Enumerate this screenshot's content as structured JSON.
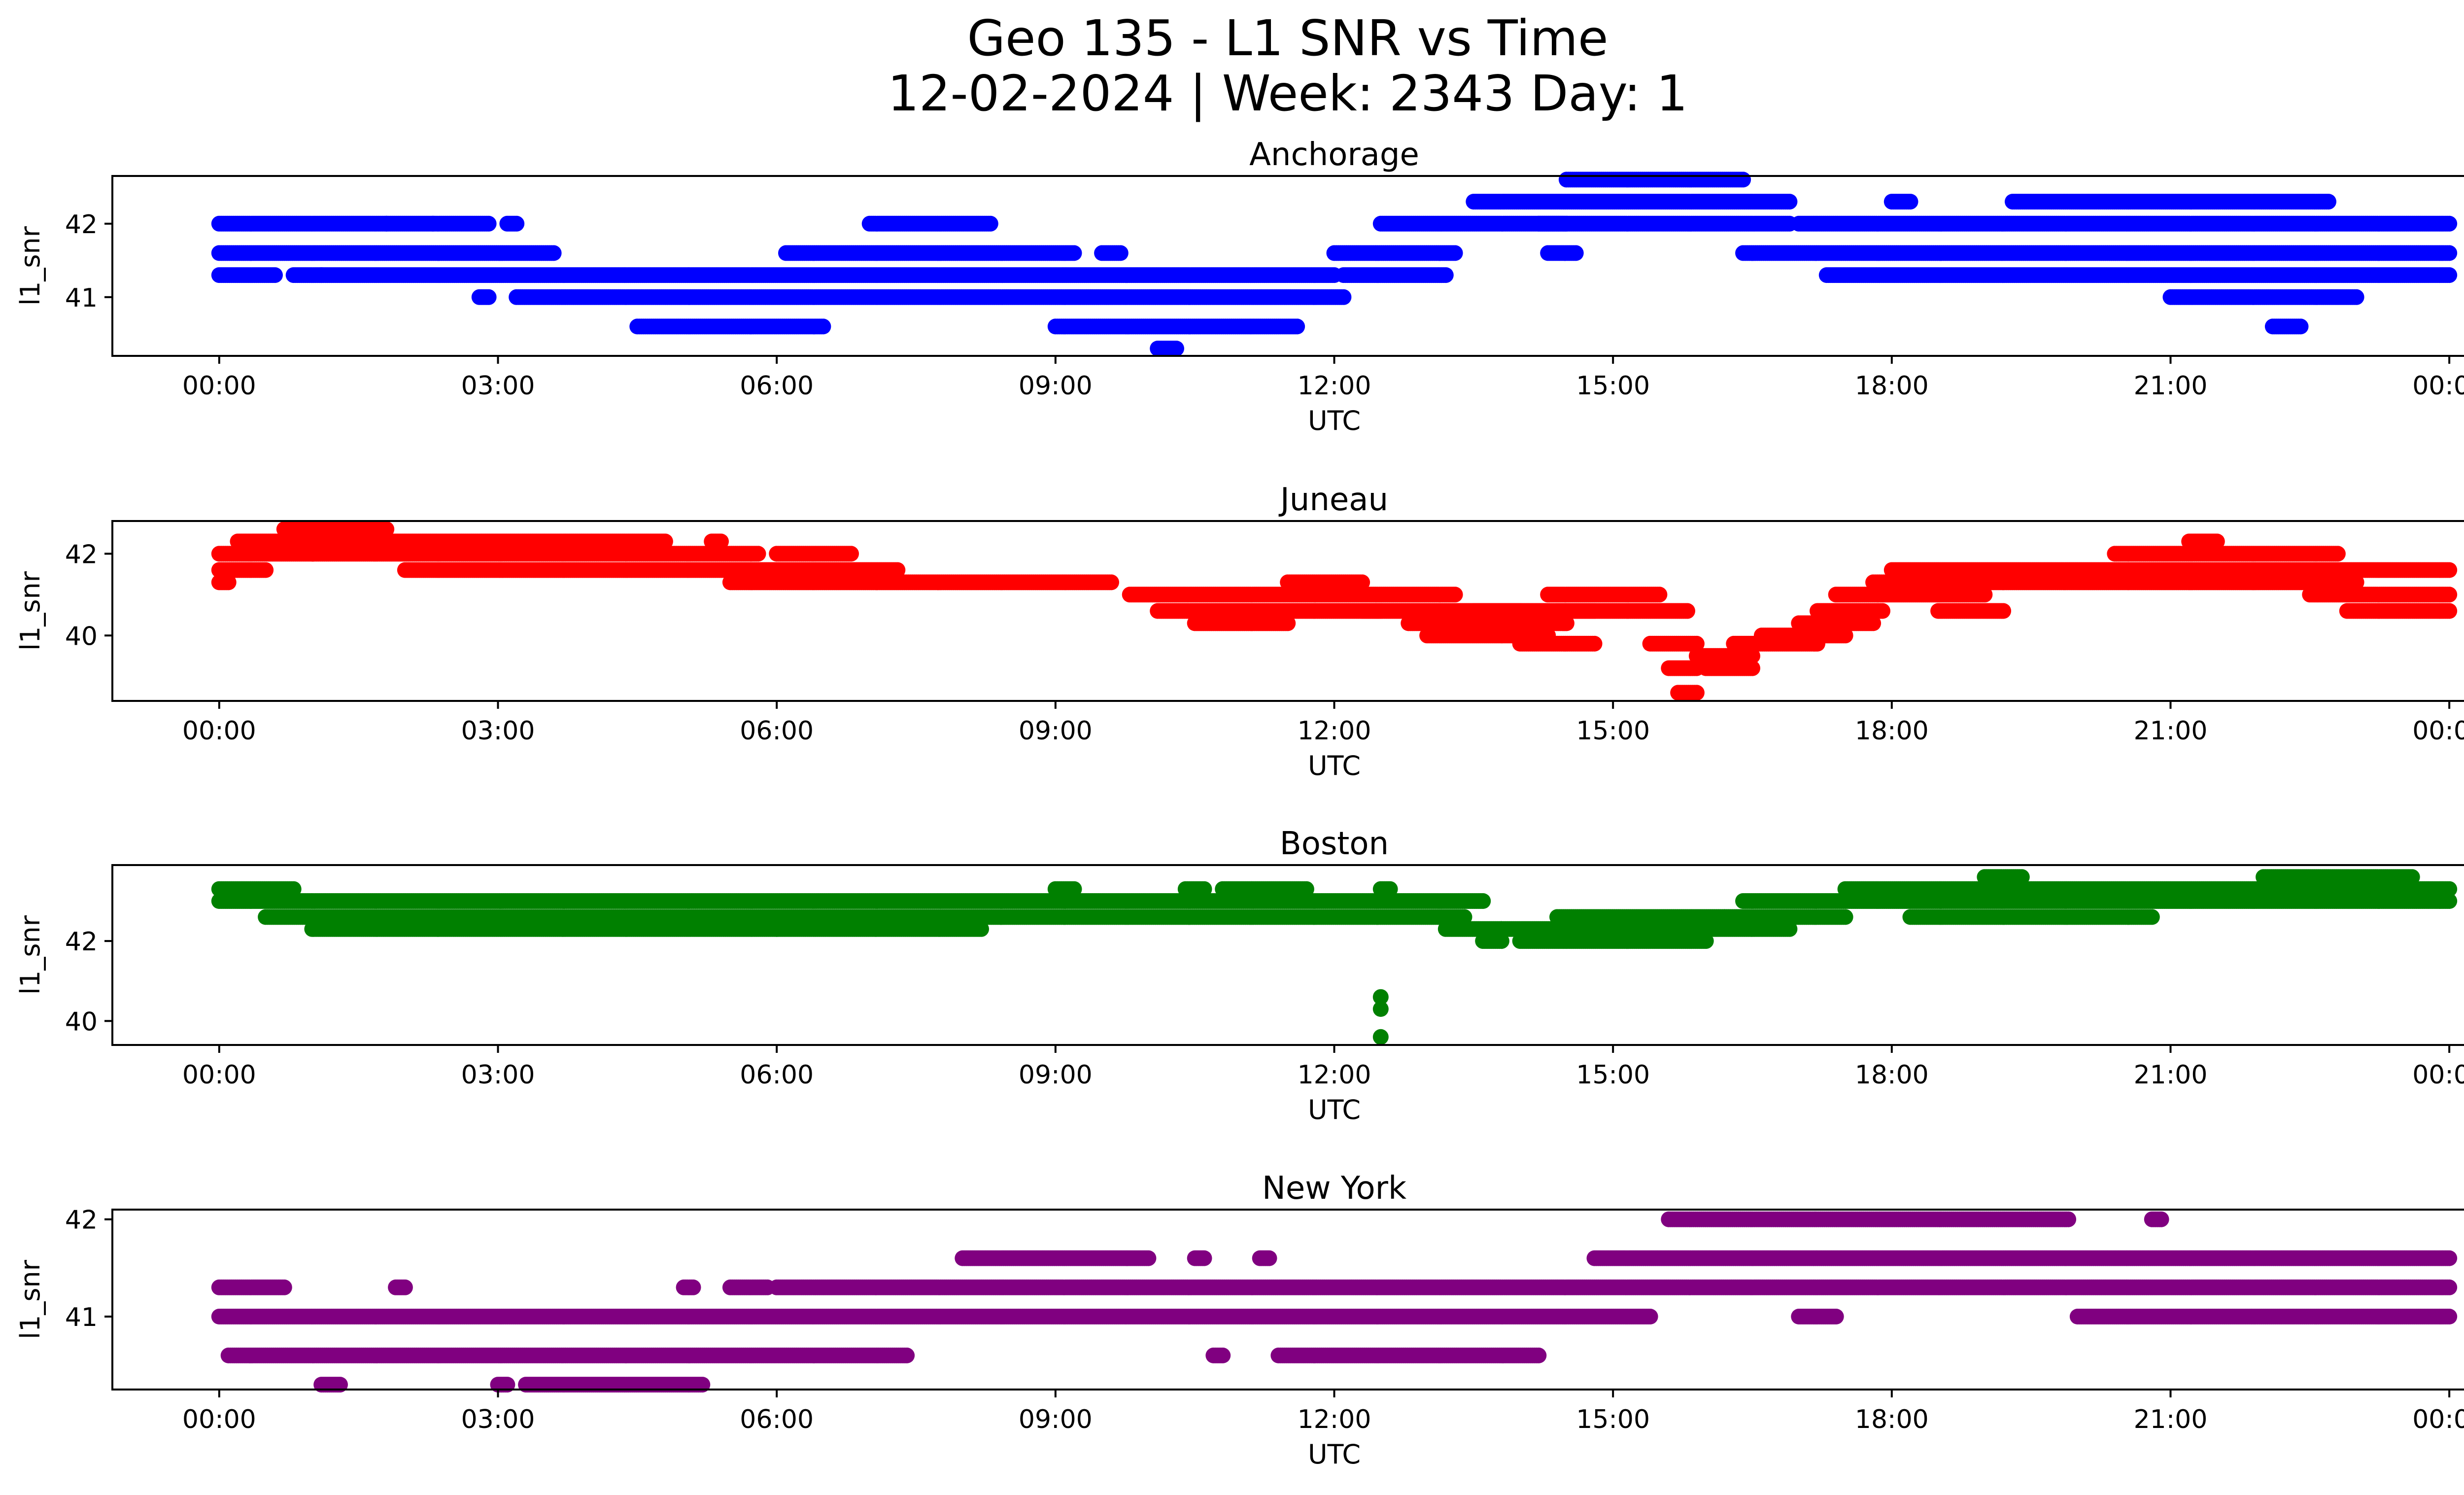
{
  "chart_data": {
    "type": "scatter",
    "title_line1": "Geo 135 - L1 SNR vs Time",
    "title_line2": "12-02-2024 | Week: 2343 Day: 1",
    "xlabel": "UTC",
    "ylabel": "l1_snr",
    "xticks": [
      "00:00",
      "03:00",
      "06:00",
      "09:00",
      "12:00",
      "15:00",
      "18:00",
      "21:00",
      "00:00"
    ],
    "xlim_hours": [
      -1.15,
      25.15
    ],
    "panels": [
      {
        "name": "Anchorage",
        "color": "#0000ff",
        "ylim": [
          40.2,
          42.65
        ],
        "yticks": [
          41,
          42
        ],
        "y_levels": [
          40.3,
          40.6,
          41.0,
          41.3,
          41.6,
          42.0,
          42.3,
          42.6
        ],
        "segments": [
          [
            0.0,
            0.6,
            41.3
          ],
          [
            0.0,
            3.6,
            41.6
          ],
          [
            0.0,
            1.8,
            42.0
          ],
          [
            1.8,
            2.3,
            42.0
          ],
          [
            2.3,
            2.9,
            42.0
          ],
          [
            3.1,
            3.2,
            42.0
          ],
          [
            0.8,
            1.1,
            41.3
          ],
          [
            1.1,
            12.0,
            41.3
          ],
          [
            2.8,
            2.9,
            41.0
          ],
          [
            3.2,
            12.1,
            41.0
          ],
          [
            4.5,
            6.5,
            40.6
          ],
          [
            6.1,
            9.2,
            41.6
          ],
          [
            7.0,
            8.3,
            42.0
          ],
          [
            9.0,
            11.6,
            40.6
          ],
          [
            10.1,
            10.3,
            40.3
          ],
          [
            9.5,
            9.7,
            41.6
          ],
          [
            12.0,
            13.3,
            41.6
          ],
          [
            12.1,
            13.2,
            41.3
          ],
          [
            12.5,
            14.5,
            42.0
          ],
          [
            13.5,
            16.9,
            42.3
          ],
          [
            14.5,
            16.4,
            42.6
          ],
          [
            14.2,
            16.9,
            42.0
          ],
          [
            14.3,
            14.6,
            41.6
          ],
          [
            16.4,
            24.0,
            41.6
          ],
          [
            17.0,
            24.0,
            42.0
          ],
          [
            17.3,
            24.0,
            41.3
          ],
          [
            21.0,
            23.0,
            41.0
          ],
          [
            18.0,
            18.2,
            42.3
          ],
          [
            19.3,
            22.7,
            42.3
          ],
          [
            22.1,
            22.4,
            40.6
          ]
        ]
      },
      {
        "name": "Juneau",
        "color": "#ff0000",
        "ylim": [
          38.4,
          42.8
        ],
        "yticks": [
          40,
          42
        ],
        "y_levels": [
          38.6,
          38.9,
          39.2,
          39.5,
          39.8,
          40.0,
          40.3,
          40.6,
          41.0,
          41.3,
          41.6,
          42.0,
          42.3,
          42.6
        ],
        "segments": [
          [
            0.0,
            0.1,
            41.3
          ],
          [
            0.0,
            0.5,
            41.6
          ],
          [
            0.0,
            1.0,
            42.0
          ],
          [
            0.2,
            1.3,
            42.3
          ],
          [
            0.7,
            1.8,
            42.6
          ],
          [
            1.0,
            5.8,
            42.0
          ],
          [
            1.2,
            4.8,
            42.3
          ],
          [
            2.0,
            7.3,
            41.6
          ],
          [
            5.3,
            5.4,
            42.3
          ],
          [
            5.5,
            9.6,
            41.3
          ],
          [
            6.0,
            6.8,
            42.0
          ],
          [
            9.8,
            13.3,
            41.0
          ],
          [
            10.1,
            12.5,
            40.6
          ],
          [
            10.5,
            11.5,
            40.3
          ],
          [
            11.5,
            12.3,
            41.3
          ],
          [
            12.3,
            14.0,
            40.6
          ],
          [
            12.8,
            14.5,
            40.3
          ],
          [
            13.0,
            14.3,
            40.0
          ],
          [
            13.5,
            14.8,
            40.6
          ],
          [
            14.0,
            14.8,
            39.8
          ],
          [
            14.3,
            15.5,
            41.0
          ],
          [
            14.4,
            15.8,
            40.6
          ],
          [
            15.4,
            15.9,
            39.8
          ],
          [
            15.6,
            15.9,
            39.2
          ],
          [
            15.7,
            15.9,
            38.6
          ],
          [
            15.9,
            16.5,
            39.5
          ],
          [
            16.0,
            16.5,
            39.2
          ],
          [
            16.3,
            17.2,
            39.8
          ],
          [
            16.6,
            17.5,
            40.0
          ],
          [
            17.0,
            17.8,
            40.3
          ],
          [
            17.2,
            17.9,
            40.6
          ],
          [
            17.4,
            19.0,
            41.0
          ],
          [
            17.8,
            23.0,
            41.3
          ],
          [
            18.0,
            24.0,
            41.6
          ],
          [
            18.5,
            19.2,
            40.6
          ],
          [
            20.4,
            22.8,
            42.0
          ],
          [
            21.2,
            21.5,
            42.3
          ],
          [
            22.5,
            24.0,
            41.0
          ],
          [
            22.9,
            24.0,
            40.6
          ]
        ]
      },
      {
        "name": "Boston",
        "color": "#008000",
        "ylim": [
          39.4,
          43.9
        ],
        "yticks": [
          40,
          42
        ],
        "y_levels": [
          39.6,
          40.3,
          40.6,
          42.0,
          42.3,
          42.6,
          43.0,
          43.3,
          43.6
        ],
        "segments": [
          [
            0.0,
            0.8,
            43.3
          ],
          [
            0.0,
            13.6,
            43.0
          ],
          [
            0.5,
            13.4,
            42.6
          ],
          [
            1.0,
            6.0,
            42.3
          ],
          [
            6.0,
            8.2,
            42.3
          ],
          [
            9.0,
            9.2,
            43.3
          ],
          [
            10.4,
            10.6,
            43.3
          ],
          [
            10.8,
            11.7,
            43.3
          ],
          [
            12.5,
            12.6,
            43.3
          ],
          [
            13.2,
            13.8,
            42.3
          ],
          [
            13.6,
            13.8,
            42.0
          ],
          [
            13.8,
            16.9,
            42.3
          ],
          [
            14.0,
            16.0,
            42.0
          ],
          [
            14.4,
            16.2,
            42.6
          ],
          [
            16.2,
            17.5,
            42.6
          ],
          [
            16.4,
            24.0,
            43.0
          ],
          [
            17.5,
            24.0,
            43.3
          ],
          [
            18.2,
            20.8,
            42.6
          ],
          [
            19.0,
            19.4,
            43.6
          ],
          [
            22.0,
            23.6,
            43.6
          ]
        ],
        "extra_points": [
          [
            12.5,
            40.6
          ],
          [
            12.5,
            40.3
          ],
          [
            12.5,
            39.6
          ]
        ]
      },
      {
        "name": "New York",
        "color": "#800080",
        "ylim": [
          40.25,
          42.1
        ],
        "yticks": [
          41,
          42
        ],
        "y_levels": [
          40.3,
          40.6,
          41.0,
          41.3,
          41.6,
          42.0
        ],
        "segments": [
          [
            0.0,
            0.7,
            41.3
          ],
          [
            0.0,
            15.4,
            41.0
          ],
          [
            0.1,
            7.4,
            40.6
          ],
          [
            1.1,
            1.3,
            40.3
          ],
          [
            3.0,
            3.1,
            40.3
          ],
          [
            3.3,
            5.2,
            40.3
          ],
          [
            1.9,
            2.0,
            41.3
          ],
          [
            5.0,
            5.1,
            41.3
          ],
          [
            5.5,
            5.9,
            41.3
          ],
          [
            6.0,
            24.0,
            41.3
          ],
          [
            8.0,
            10.0,
            41.6
          ],
          [
            10.5,
            10.6,
            41.6
          ],
          [
            11.2,
            11.3,
            41.6
          ],
          [
            11.4,
            14.2,
            40.6
          ],
          [
            10.7,
            10.8,
            40.6
          ],
          [
            14.8,
            24.0,
            41.6
          ],
          [
            15.6,
            19.9,
            42.0
          ],
          [
            20.8,
            20.9,
            42.0
          ],
          [
            17.0,
            17.4,
            41.0
          ],
          [
            20.0,
            24.0,
            41.0
          ]
        ]
      }
    ]
  }
}
